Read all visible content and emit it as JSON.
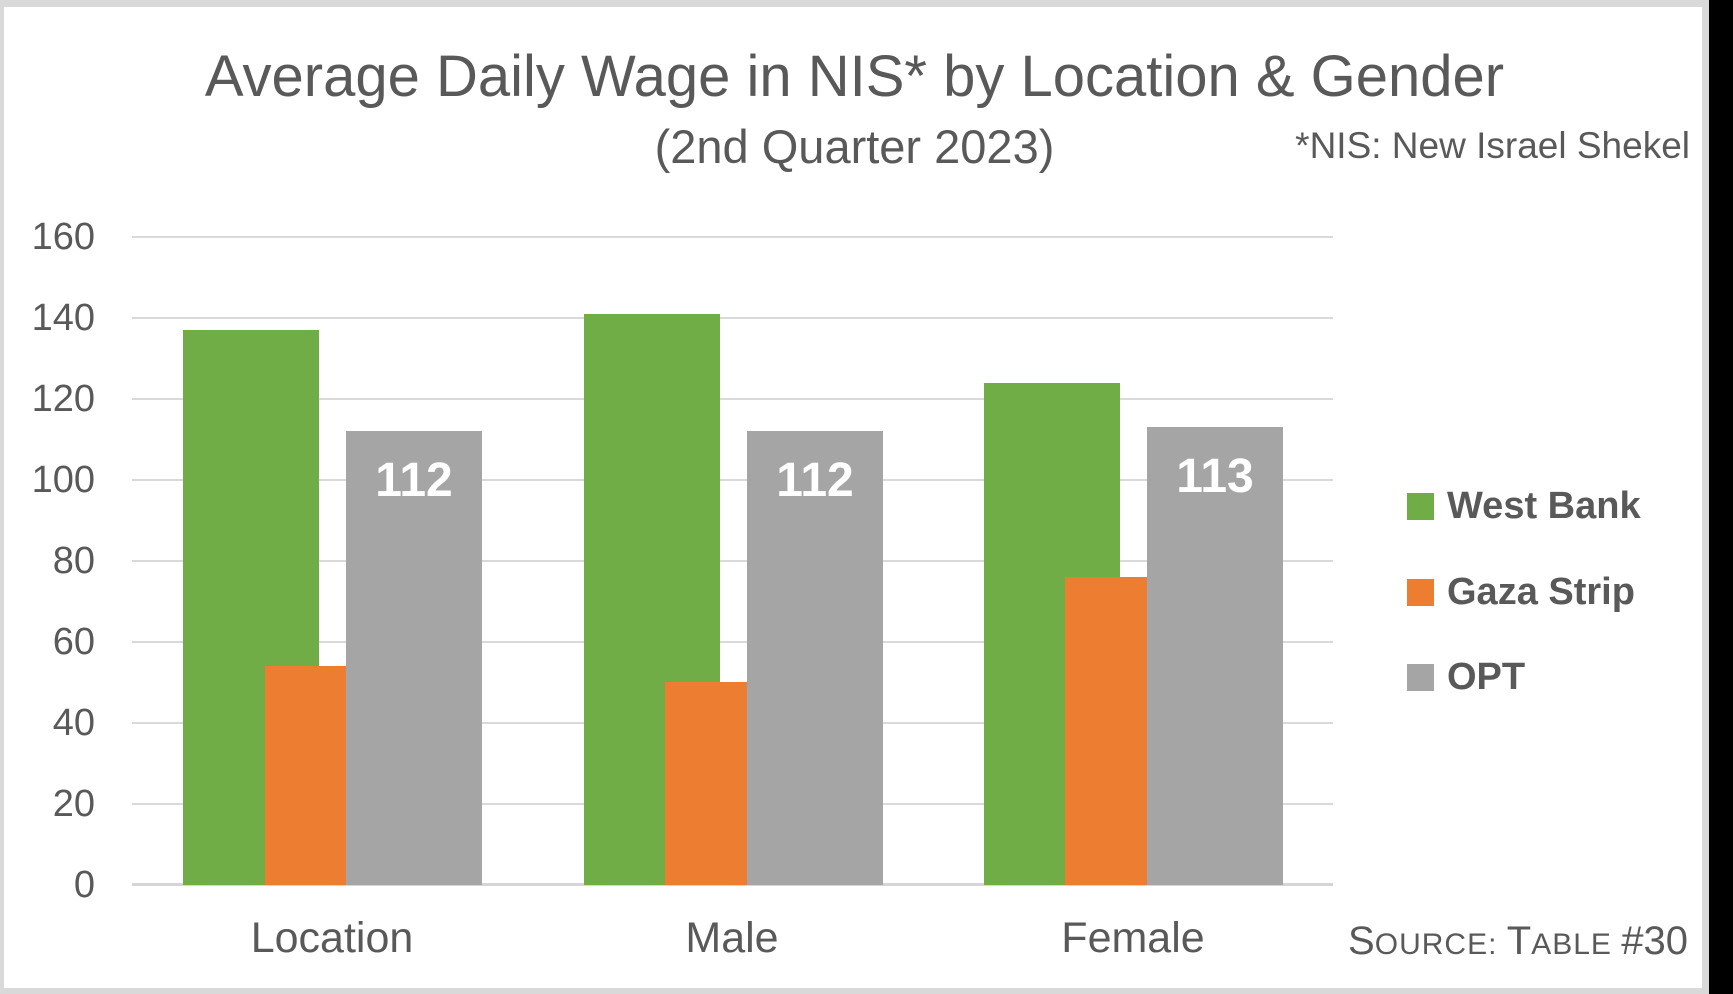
{
  "window": {
    "background_color": "#000000",
    "frame_color": "#D9D9D9",
    "slide_background": "#FFFFFF",
    "text_color": "#595959"
  },
  "chart_data": {
    "type": "bar",
    "title": "Average Daily Wage in NIS* by Location & Gender",
    "subtitle": "(2nd Quarter 2023)",
    "note": "*NIS: New Israel Shekel",
    "categories": [
      "Location",
      "Male",
      "Female"
    ],
    "series": [
      {
        "name": "West Bank",
        "color": "#70AD47",
        "values": [
          137,
          141,
          124
        ]
      },
      {
        "name": "Gaza Strip",
        "color": "#ED7D31",
        "values": [
          54,
          50,
          76
        ]
      },
      {
        "name": "OPT",
        "color": "#A5A5A5",
        "values": [
          112,
          112,
          113
        ],
        "data_labels": [
          "112",
          "112",
          "113"
        ],
        "data_label_color": "#FFFFFF"
      }
    ],
    "xlabel": "",
    "ylabel": "",
    "ylim": [
      0,
      160
    ],
    "yticks": [
      0,
      20,
      40,
      60,
      80,
      100,
      120,
      140,
      160
    ],
    "grid": true,
    "gridline_color": "#D9D9D9",
    "legend_position": "right",
    "bar_style": "series overlap: each series shifted right and drawn in front of the previous",
    "text_color": "#595959"
  },
  "footer": {
    "source_text": "Source: Table #30",
    "source_parts": [
      {
        "text": "S",
        "small_caps": false
      },
      {
        "text": "OURCE: ",
        "small_caps": true
      },
      {
        "text": "T",
        "small_caps": false
      },
      {
        "text": "ABLE ",
        "small_caps": true
      },
      {
        "text": "#30",
        "small_caps": false
      }
    ]
  }
}
